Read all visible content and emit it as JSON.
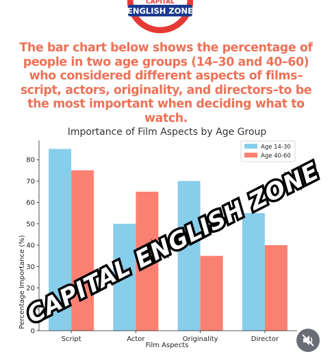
{
  "logo": {
    "top_text": "CAPITAL",
    "banner_text": "ENGLISH ZONE",
    "ring_color": "#e53935",
    "banner_color": "#1a3a8f"
  },
  "heading": "The bar chart below shows the percentage of people in two age groups (14–30 and 40–60) who considered different aspects of films–script, actors, originality, and directors–to be the most important when deciding what to watch.",
  "chart_data": {
    "type": "bar",
    "title": "Importance of Film Aspects by Age Group",
    "xlabel": "Film Aspects",
    "ylabel": "Percentage Importance (%)",
    "categories": [
      "Script",
      "Actor",
      "Originality",
      "Director"
    ],
    "series": [
      {
        "name": "Age 14-30",
        "values": [
          85,
          50,
          70,
          55
        ],
        "color": "#87ceeb"
      },
      {
        "name": "Age 40-60",
        "values": [
          75,
          65,
          35,
          40
        ],
        "color": "#fa8072"
      }
    ],
    "ylim": [
      0,
      89
    ],
    "yticks": [
      0,
      10,
      20,
      30,
      40,
      50,
      60,
      70,
      80
    ],
    "grid": false,
    "legend_position": "top-right"
  },
  "watermark": "CAPITAL ENGLISH ZONE",
  "mute_icon": "speaker-muted-icon"
}
